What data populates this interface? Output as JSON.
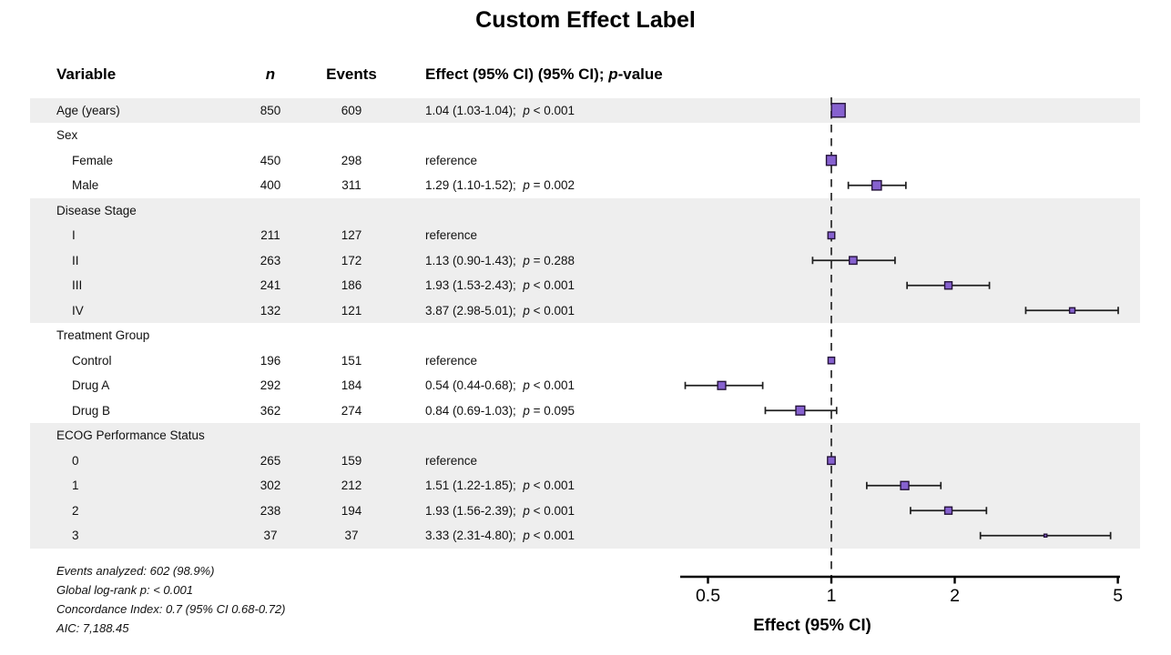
{
  "title": "Custom Effect Label",
  "header": {
    "variable": "Variable",
    "n": "n",
    "events": "Events",
    "effect_prefix": "Effect (95% CI) (95% CI); ",
    "effect_p": "p",
    "effect_suffix": "-value"
  },
  "footer": {
    "lines": [
      "Events analyzed: 602 (98.9%)",
      "Global log-rank p: < 0.001",
      "Concordance Index: 0.7 (95% CI 0.68-0.72)",
      "AIC: 7,188.45"
    ]
  },
  "colors": {
    "marker_fill": "#8661cf",
    "marker_stroke": "#241339",
    "line": "#1f1f1f",
    "band": "#eeeeee",
    "ref_line": "#333333"
  },
  "chart_data": {
    "type": "scatter",
    "subtype": "forest-plot",
    "title": "Custom Effect Label",
    "xlabel": "Effect (95% CI)",
    "xscale": "log",
    "xlim": [
      0.42,
      5.06
    ],
    "reference_line": 1,
    "axis_ticks": [
      {
        "value": 0.5,
        "label": "0.5"
      },
      {
        "value": 1,
        "label": "1"
      },
      {
        "value": 2,
        "label": "2"
      },
      {
        "value": 5,
        "label": "5"
      }
    ],
    "rows": [
      {
        "label": "Age (years)",
        "indent": 0,
        "group": false,
        "shaded": true,
        "n": 850,
        "events": 609,
        "est": "1.04 (1.03-1.04)",
        "p": "< 0.001",
        "value": 1.04,
        "lo": 1.03,
        "hi": 1.04
      },
      {
        "label": "Sex",
        "indent": 0,
        "group": true,
        "shaded": false
      },
      {
        "label": "Female",
        "indent": 1,
        "group": false,
        "shaded": false,
        "n": 450,
        "events": 298,
        "reference": true,
        "value": 1
      },
      {
        "label": "Male",
        "indent": 1,
        "group": false,
        "shaded": false,
        "n": 400,
        "events": 311,
        "est": "1.29 (1.10-1.52)",
        "p": "= 0.002",
        "value": 1.29,
        "lo": 1.1,
        "hi": 1.52
      },
      {
        "label": "Disease Stage",
        "indent": 0,
        "group": true,
        "shaded": true
      },
      {
        "label": "I",
        "indent": 1,
        "group": false,
        "shaded": true,
        "n": 211,
        "events": 127,
        "reference": true,
        "value": 1
      },
      {
        "label": "II",
        "indent": 1,
        "group": false,
        "shaded": true,
        "n": 263,
        "events": 172,
        "est": "1.13 (0.90-1.43)",
        "p": "= 0.288",
        "value": 1.13,
        "lo": 0.9,
        "hi": 1.43
      },
      {
        "label": "III",
        "indent": 1,
        "group": false,
        "shaded": true,
        "n": 241,
        "events": 186,
        "est": "1.93 (1.53-2.43)",
        "p": "< 0.001",
        "value": 1.93,
        "lo": 1.53,
        "hi": 2.43
      },
      {
        "label": "IV",
        "indent": 1,
        "group": false,
        "shaded": true,
        "n": 132,
        "events": 121,
        "est": "3.87 (2.98-5.01)",
        "p": "< 0.001",
        "value": 3.87,
        "lo": 2.98,
        "hi": 5.01
      },
      {
        "label": "Treatment Group",
        "indent": 0,
        "group": true,
        "shaded": false
      },
      {
        "label": "Control",
        "indent": 1,
        "group": false,
        "shaded": false,
        "n": 196,
        "events": 151,
        "reference": true,
        "value": 1
      },
      {
        "label": "Drug A",
        "indent": 1,
        "group": false,
        "shaded": false,
        "n": 292,
        "events": 184,
        "est": "0.54 (0.44-0.68)",
        "p": "< 0.001",
        "value": 0.54,
        "lo": 0.44,
        "hi": 0.68
      },
      {
        "label": "Drug B",
        "indent": 1,
        "group": false,
        "shaded": false,
        "n": 362,
        "events": 274,
        "est": "0.84 (0.69-1.03)",
        "p": "= 0.095",
        "value": 0.84,
        "lo": 0.69,
        "hi": 1.03
      },
      {
        "label": "ECOG Performance Status",
        "indent": 0,
        "group": true,
        "shaded": true
      },
      {
        "label": "0",
        "indent": 1,
        "group": false,
        "shaded": true,
        "n": 265,
        "events": 159,
        "reference": true,
        "value": 1
      },
      {
        "label": "1",
        "indent": 1,
        "group": false,
        "shaded": true,
        "n": 302,
        "events": 212,
        "est": "1.51 (1.22-1.85)",
        "p": "< 0.001",
        "value": 1.51,
        "lo": 1.22,
        "hi": 1.85
      },
      {
        "label": "2",
        "indent": 1,
        "group": false,
        "shaded": true,
        "n": 238,
        "events": 194,
        "est": "1.93 (1.56-2.39)",
        "p": "< 0.001",
        "value": 1.93,
        "lo": 1.56,
        "hi": 2.39
      },
      {
        "label": "3",
        "indent": 1,
        "group": false,
        "shaded": true,
        "n": 37,
        "events": 37,
        "est": "3.33 (2.31-4.80)",
        "p": "< 0.001",
        "value": 3.33,
        "lo": 2.31,
        "hi": 4.8
      }
    ],
    "reference_label": "reference",
    "legend": "none",
    "grid": "off"
  }
}
